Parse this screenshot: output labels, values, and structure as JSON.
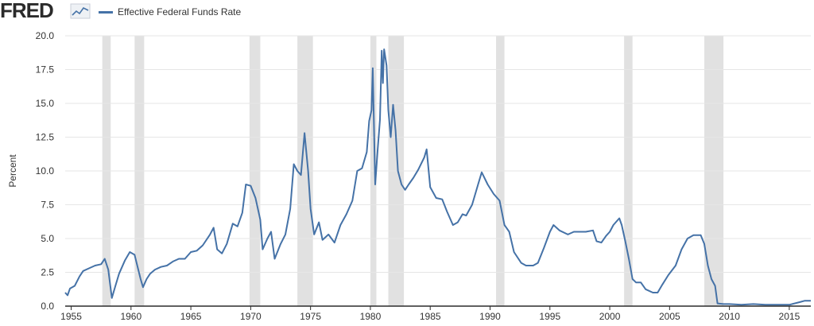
{
  "header": {
    "logo_text": "FRED",
    "logo_icon": "line-chart-icon"
  },
  "colors": {
    "series": "#4572a7",
    "recession": "#e1e1e1",
    "grid": "#e6e6e6",
    "axis": "#2b2b2b",
    "text": "#333333"
  },
  "chart_data": {
    "type": "line",
    "title": "",
    "xlabel": "",
    "ylabel": "Percent",
    "xlim": [
      1954.5,
      2016.8
    ],
    "ylim": [
      0,
      20
    ],
    "yticks": [
      0,
      2.5,
      5,
      7.5,
      10,
      12.5,
      15,
      17.5,
      20
    ],
    "ytick_labels": [
      "0.0",
      "2.5",
      "5.0",
      "7.5",
      "10.0",
      "12.5",
      "15.0",
      "17.5",
      "20.0"
    ],
    "xticks": [
      1955,
      1960,
      1965,
      1970,
      1975,
      1980,
      1985,
      1990,
      1995,
      2000,
      2005,
      2010,
      2015
    ],
    "xtick_labels": [
      "1955",
      "1960",
      "1965",
      "1970",
      "1975",
      "1980",
      "1985",
      "1990",
      "1995",
      "2000",
      "2005",
      "2010",
      "2015"
    ],
    "grid": true,
    "legend": "top-left",
    "recessions": [
      [
        1957.6,
        1958.3
      ],
      [
        1960.3,
        1961.1
      ],
      [
        1969.9,
        1970.8
      ],
      [
        1973.9,
        1975.2
      ],
      [
        1980.0,
        1980.5
      ],
      [
        1981.5,
        1982.8
      ],
      [
        1990.5,
        1991.2
      ],
      [
        2001.2,
        2001.9
      ],
      [
        2007.9,
        2009.5
      ]
    ],
    "series": [
      {
        "name": "Effective Federal Funds Rate",
        "x": [
          1954.5,
          1954.7,
          1954.9,
          1955.3,
          1955.7,
          1956.0,
          1956.5,
          1957.0,
          1957.5,
          1957.8,
          1958.1,
          1958.4,
          1958.7,
          1959.0,
          1959.5,
          1959.9,
          1960.3,
          1960.8,
          1961.0,
          1961.3,
          1961.6,
          1962.0,
          1962.5,
          1963.0,
          1963.5,
          1964.0,
          1964.5,
          1965.0,
          1965.5,
          1966.0,
          1966.6,
          1966.9,
          1967.2,
          1967.6,
          1968.0,
          1968.5,
          1968.9,
          1969.3,
          1969.6,
          1970.0,
          1970.4,
          1970.8,
          1971.0,
          1971.4,
          1971.7,
          1972.0,
          1972.5,
          1972.9,
          1973.3,
          1973.6,
          1973.9,
          1974.2,
          1974.5,
          1974.8,
          1975.0,
          1975.3,
          1975.7,
          1976.0,
          1976.5,
          1977.0,
          1977.5,
          1978.0,
          1978.5,
          1978.9,
          1979.3,
          1979.7,
          1979.9,
          1980.1,
          1980.2,
          1980.4,
          1980.6,
          1980.8,
          1980.95,
          1981.05,
          1981.15,
          1981.35,
          1981.5,
          1981.7,
          1981.9,
          1982.1,
          1982.3,
          1982.6,
          1982.9,
          1983.2,
          1983.6,
          1984.0,
          1984.5,
          1984.7,
          1985.0,
          1985.5,
          1986.0,
          1986.4,
          1986.9,
          1987.3,
          1987.7,
          1988.0,
          1988.5,
          1989.0,
          1989.3,
          1989.8,
          1990.3,
          1990.8,
          1991.2,
          1991.6,
          1992.0,
          1992.6,
          1993.0,
          1993.6,
          1994.0,
          1994.5,
          1995.0,
          1995.3,
          1995.8,
          1996.5,
          1997.0,
          1997.5,
          1998.0,
          1998.6,
          1998.9,
          1999.3,
          1999.7,
          2000.0,
          2000.3,
          2000.8,
          2001.0,
          2001.3,
          2001.6,
          2001.9,
          2002.2,
          2002.6,
          2003.0,
          2003.6,
          2004.0,
          2004.4,
          2004.9,
          2005.5,
          2006.0,
          2006.5,
          2007.0,
          2007.6,
          2007.9,
          2008.2,
          2008.5,
          2008.8,
          2009.0,
          2009.5,
          2010.0,
          2011.0,
          2012.0,
          2013.0,
          2014.0,
          2015.0,
          2015.9,
          2016.3,
          2016.8
        ],
        "values": [
          1.0,
          0.8,
          1.3,
          1.5,
          2.2,
          2.6,
          2.8,
          3.0,
          3.1,
          3.5,
          2.7,
          0.6,
          1.5,
          2.4,
          3.4,
          4.0,
          3.8,
          2.0,
          1.4,
          2.0,
          2.4,
          2.7,
          2.9,
          3.0,
          3.3,
          3.5,
          3.5,
          4.0,
          4.1,
          4.5,
          5.3,
          5.8,
          4.2,
          3.9,
          4.6,
          6.1,
          5.9,
          6.9,
          9.0,
          8.9,
          8.0,
          6.4,
          4.2,
          5.0,
          5.5,
          3.5,
          4.6,
          5.3,
          7.2,
          10.5,
          10.0,
          9.7,
          12.8,
          10.0,
          7.2,
          5.3,
          6.2,
          4.9,
          5.3,
          4.7,
          6.0,
          6.8,
          7.8,
          10.0,
          10.2,
          11.4,
          13.7,
          14.5,
          17.6,
          9.0,
          11.5,
          13.8,
          18.9,
          16.5,
          19.0,
          17.8,
          14.5,
          12.5,
          14.9,
          13.0,
          10.0,
          9.0,
          8.6,
          9.0,
          9.5,
          10.1,
          11.0,
          11.6,
          8.8,
          8.0,
          7.9,
          7.0,
          6.0,
          6.2,
          6.8,
          6.7,
          7.5,
          9.0,
          9.9,
          9.0,
          8.3,
          7.8,
          6.0,
          5.5,
          4.0,
          3.2,
          3.0,
          3.0,
          3.2,
          4.3,
          5.5,
          6.0,
          5.6,
          5.3,
          5.5,
          5.5,
          5.5,
          5.6,
          4.8,
          4.7,
          5.2,
          5.5,
          6.0,
          6.5,
          6.0,
          4.8,
          3.5,
          2.0,
          1.75,
          1.75,
          1.25,
          1.0,
          1.0,
          1.6,
          2.3,
          3.0,
          4.2,
          5.0,
          5.25,
          5.25,
          4.6,
          3.0,
          2.0,
          1.5,
          0.2,
          0.15,
          0.15,
          0.1,
          0.15,
          0.1,
          0.1,
          0.1,
          0.3,
          0.4,
          0.4
        ]
      }
    ]
  }
}
